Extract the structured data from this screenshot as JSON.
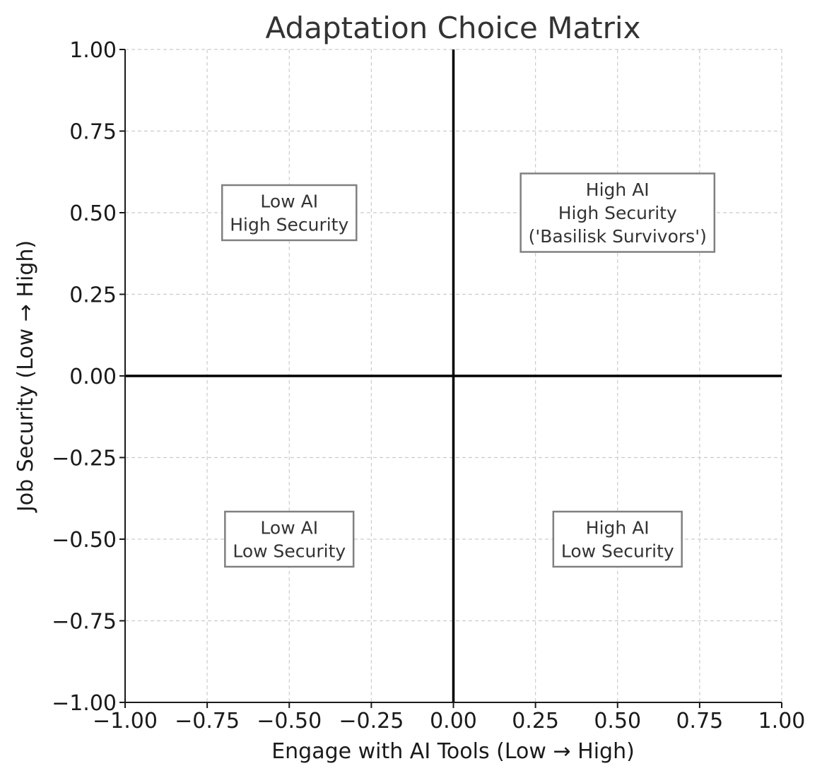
{
  "chart_data": {
    "type": "scatter",
    "title": "Adaptation Choice Matrix",
    "xlabel": "Engage with AI Tools (Low → High)",
    "ylabel": "Job Security (Low → High)",
    "xlim": [
      -1.0,
      1.0
    ],
    "ylim": [
      -1.0,
      1.0
    ],
    "xticks": [
      "−1.00",
      "−0.75",
      "−0.50",
      "−0.25",
      "0.00",
      "0.25",
      "0.50",
      "0.75",
      "1.00"
    ],
    "xtick_values": [
      -1.0,
      -0.75,
      -0.5,
      -0.25,
      0.0,
      0.25,
      0.5,
      0.75,
      1.0
    ],
    "yticks": [
      "−1.00",
      "−0.75",
      "−0.50",
      "−0.25",
      "0.00",
      "0.25",
      "0.50",
      "0.75",
      "1.00"
    ],
    "ytick_values": [
      -1.0,
      -0.75,
      -0.5,
      -0.25,
      0.0,
      0.25,
      0.5,
      0.75,
      1.0
    ],
    "grid": true,
    "reference_lines": {
      "x": 0.0,
      "y": 0.0
    },
    "annotations": [
      {
        "x": -0.5,
        "y": 0.5,
        "lines": [
          "Low AI",
          "High Security"
        ]
      },
      {
        "x": 0.5,
        "y": 0.5,
        "lines": [
          "High AI",
          "High Security",
          "('Basilisk Survivors')"
        ]
      },
      {
        "x": -0.5,
        "y": -0.5,
        "lines": [
          "Low AI",
          "Low Security"
        ]
      },
      {
        "x": 0.5,
        "y": -0.5,
        "lines": [
          "High AI",
          "Low Security"
        ]
      }
    ]
  },
  "colors": {
    "grid": "#cccccc",
    "zero_line": "#000000",
    "box_border": "#808080",
    "text": "#333333"
  }
}
